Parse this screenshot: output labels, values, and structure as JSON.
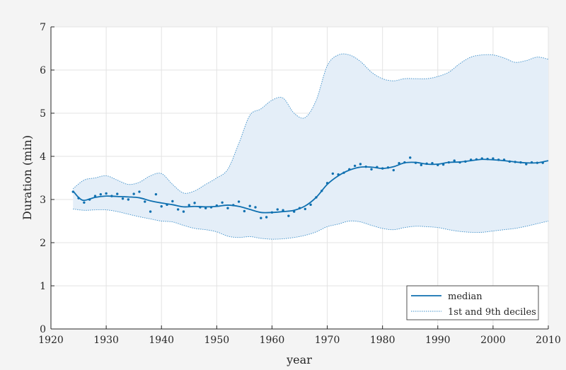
{
  "chart_data": {
    "type": "line",
    "xlabel": "year",
    "ylabel": "Duration (min)",
    "xlim": [
      1920,
      2010
    ],
    "ylim": [
      0,
      7
    ],
    "xticks": [
      1920,
      1930,
      1940,
      1950,
      1960,
      1970,
      1980,
      1990,
      2000,
      2010
    ],
    "yticks": [
      0,
      1,
      2,
      3,
      4,
      5,
      6,
      7
    ],
    "grid": true,
    "legend_position": "bottom-right",
    "legend": [
      {
        "label": "median",
        "style": "solid",
        "color": "#0f70b0"
      },
      {
        "label": "1st and 9th deciles",
        "style": "dotted",
        "color": "#3d8fc9"
      }
    ],
    "colors": {
      "median": "#0f70b0",
      "band_fill": "#e4eef8",
      "band_edge": "#3d8fc9",
      "points": "#0f70b0"
    },
    "series": [
      {
        "name": "median",
        "x": [
          1924,
          1925,
          1926,
          1928,
          1930,
          1932,
          1934,
          1936,
          1938,
          1940,
          1942,
          1944,
          1946,
          1948,
          1950,
          1952,
          1954,
          1956,
          1958,
          1960,
          1962,
          1964,
          1966,
          1968,
          1970,
          1972,
          1974,
          1976,
          1978,
          1980,
          1982,
          1984,
          1986,
          1988,
          1990,
          1992,
          1994,
          1996,
          1998,
          2000,
          2002,
          2004,
          2006,
          2008,
          2010
        ],
        "y": [
          3.2,
          3.05,
          2.98,
          3.05,
          3.08,
          3.07,
          3.06,
          3.04,
          2.97,
          2.92,
          2.88,
          2.83,
          2.84,
          2.83,
          2.84,
          2.87,
          2.84,
          2.77,
          2.7,
          2.7,
          2.72,
          2.75,
          2.85,
          3.05,
          3.35,
          3.55,
          3.68,
          3.75,
          3.75,
          3.72,
          3.76,
          3.85,
          3.86,
          3.82,
          3.82,
          3.86,
          3.87,
          3.9,
          3.93,
          3.92,
          3.9,
          3.87,
          3.85,
          3.85,
          3.9
        ]
      },
      {
        "name": "1st decile",
        "x": [
          1924,
          1926,
          1928,
          1930,
          1932,
          1934,
          1936,
          1938,
          1940,
          1942,
          1944,
          1946,
          1948,
          1950,
          1952,
          1954,
          1956,
          1958,
          1960,
          1962,
          1964,
          1966,
          1968,
          1970,
          1972,
          1974,
          1976,
          1978,
          1980,
          1982,
          1984,
          1986,
          1988,
          1990,
          1992,
          1994,
          1996,
          1998,
          2000,
          2002,
          2004,
          2006,
          2008,
          2010
        ],
        "y": [
          2.78,
          2.75,
          2.76,
          2.76,
          2.72,
          2.66,
          2.6,
          2.55,
          2.5,
          2.48,
          2.4,
          2.33,
          2.3,
          2.25,
          2.15,
          2.12,
          2.14,
          2.1,
          2.08,
          2.09,
          2.12,
          2.17,
          2.25,
          2.37,
          2.43,
          2.5,
          2.48,
          2.4,
          2.33,
          2.3,
          2.35,
          2.38,
          2.37,
          2.35,
          2.3,
          2.26,
          2.24,
          2.24,
          2.27,
          2.3,
          2.33,
          2.38,
          2.44,
          2.5
        ]
      },
      {
        "name": "9th decile",
        "x": [
          1924,
          1926,
          1928,
          1930,
          1932,
          1934,
          1936,
          1938,
          1940,
          1942,
          1944,
          1946,
          1948,
          1950,
          1952,
          1954,
          1956,
          1958,
          1960,
          1962,
          1964,
          1966,
          1968,
          1970,
          1972,
          1974,
          1976,
          1978,
          1980,
          1982,
          1984,
          1986,
          1988,
          1990,
          1992,
          1994,
          1996,
          1998,
          2000,
          2002,
          2004,
          2006,
          2008,
          2010
        ],
        "y": [
          3.25,
          3.45,
          3.5,
          3.55,
          3.45,
          3.35,
          3.4,
          3.55,
          3.6,
          3.35,
          3.15,
          3.2,
          3.35,
          3.5,
          3.7,
          4.3,
          4.95,
          5.1,
          5.3,
          5.35,
          5.0,
          4.9,
          5.3,
          6.1,
          6.35,
          6.35,
          6.2,
          5.95,
          5.8,
          5.75,
          5.8,
          5.8,
          5.8,
          5.85,
          5.95,
          6.15,
          6.3,
          6.35,
          6.35,
          6.28,
          6.18,
          6.22,
          6.3,
          6.25
        ]
      },
      {
        "name": "annual values",
        "x": [
          1924,
          1925,
          1926,
          1927,
          1928,
          1929,
          1930,
          1931,
          1932,
          1933,
          1934,
          1935,
          1936,
          1937,
          1938,
          1939,
          1940,
          1941,
          1942,
          1943,
          1944,
          1945,
          1946,
          1947,
          1948,
          1949,
          1950,
          1951,
          1952,
          1953,
          1954,
          1955,
          1956,
          1957,
          1958,
          1959,
          1960,
          1961,
          1962,
          1963,
          1964,
          1965,
          1966,
          1967,
          1968,
          1969,
          1970,
          1971,
          1972,
          1973,
          1974,
          1975,
          1976,
          1977,
          1978,
          1979,
          1980,
          1981,
          1982,
          1983,
          1984,
          1985,
          1986,
          1987,
          1988,
          1989,
          1990,
          1991,
          1992,
          1993,
          1994,
          1995,
          1996,
          1997,
          1998,
          1999,
          2000,
          2001,
          2002,
          2003,
          2004,
          2005,
          2006,
          2007,
          2008,
          2009
        ],
        "y": [
          3.18,
          3.03,
          2.93,
          3.0,
          3.08,
          3.12,
          3.14,
          3.08,
          3.13,
          3.02,
          3.0,
          3.13,
          3.18,
          2.95,
          2.72,
          3.12,
          2.84,
          2.88,
          2.96,
          2.77,
          2.72,
          2.87,
          2.92,
          2.82,
          2.8,
          2.82,
          2.86,
          2.93,
          2.8,
          2.87,
          2.95,
          2.73,
          2.85,
          2.82,
          2.57,
          2.59,
          2.7,
          2.77,
          2.75,
          2.62,
          2.72,
          2.8,
          2.78,
          2.88,
          3.05,
          3.2,
          3.38,
          3.6,
          3.58,
          3.62,
          3.7,
          3.78,
          3.82,
          3.76,
          3.7,
          3.75,
          3.72,
          3.74,
          3.68,
          3.84,
          3.86,
          3.97,
          3.85,
          3.8,
          3.83,
          3.84,
          3.8,
          3.81,
          3.86,
          3.9,
          3.86,
          3.88,
          3.92,
          3.93,
          3.95,
          3.94,
          3.95,
          3.92,
          3.92,
          3.88,
          3.87,
          3.86,
          3.82,
          3.86,
          3.85,
          3.85
        ]
      }
    ]
  }
}
